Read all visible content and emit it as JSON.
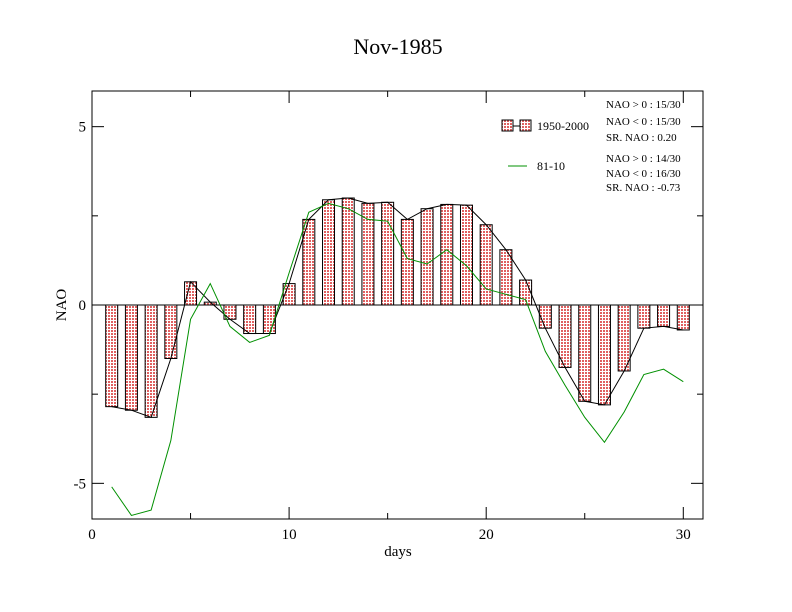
{
  "chart_data": {
    "type": "bar",
    "title": "Nov-1985",
    "xlabel": "days",
    "ylabel": "NAO",
    "xlim": [
      0,
      31
    ],
    "ylim": [
      -6,
      6
    ],
    "xticks": [
      0,
      10,
      20,
      30
    ],
    "yticks": [
      -5,
      0,
      5
    ],
    "grid": false,
    "legend_position": "top-right",
    "x": [
      1,
      2,
      3,
      4,
      5,
      6,
      7,
      8,
      9,
      10,
      11,
      12,
      13,
      14,
      15,
      16,
      17,
      18,
      19,
      20,
      21,
      22,
      23,
      24,
      25,
      26,
      27,
      28,
      29,
      30
    ],
    "series": [
      {
        "name": "1950-2000",
        "kind": "bar",
        "color": "#e07070",
        "values": [
          -2.85,
          -2.95,
          -3.15,
          -1.5,
          0.65,
          0.08,
          -0.4,
          -0.8,
          -0.8,
          0.6,
          2.4,
          2.95,
          3.0,
          2.85,
          2.88,
          2.4,
          2.7,
          2.82,
          2.8,
          2.25,
          1.55,
          0.7,
          -0.65,
          -1.75,
          -2.7,
          -2.8,
          -1.85,
          -0.65,
          -0.6,
          -0.7
        ]
      },
      {
        "name": "81-10",
        "kind": "line",
        "color": "#009000",
        "values": [
          -5.1,
          -5.9,
          -5.75,
          -3.8,
          -0.4,
          0.6,
          -0.6,
          -1.05,
          -0.85,
          0.9,
          2.6,
          2.85,
          2.7,
          2.4,
          2.35,
          1.3,
          1.15,
          1.55,
          1.1,
          0.45,
          0.3,
          0.15,
          -1.3,
          -2.25,
          -3.15,
          -3.85,
          -3.0,
          -1.95,
          -1.8,
          -2.15
        ]
      }
    ],
    "stats": [
      {
        "nao_pos": "NAO > 0 : 15/30",
        "nao_neg": "NAO < 0 : 15/30",
        "sr": "SR. NAO :  0.20"
      },
      {
        "nao_pos": "NAO > 0 : 14/30",
        "nao_neg": "NAO < 0 : 16/30",
        "sr": "SR. NAO : -0.73"
      }
    ]
  }
}
